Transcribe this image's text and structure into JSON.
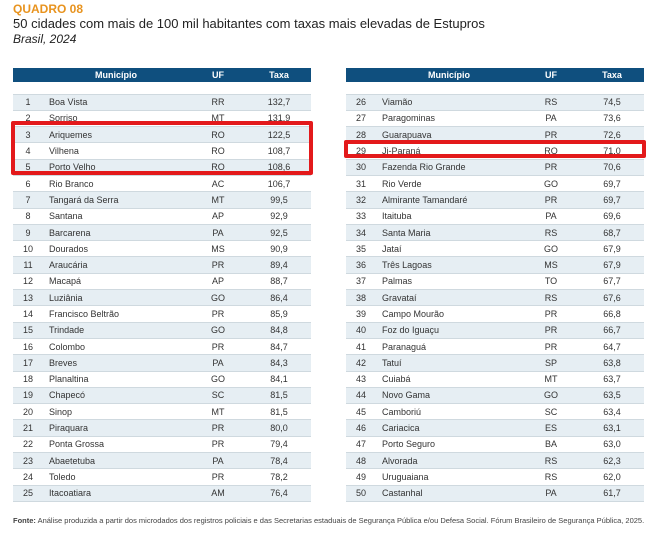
{
  "header": {
    "kicker": "QUADRO 08",
    "title": "50 cidades com mais de 100 mil habitantes com taxas mais elevadas de Estupros",
    "subtitle": "Brasil, 2024"
  },
  "columns": {
    "num": "",
    "municipio": "Município",
    "uf": "UF",
    "taxa": "Taxa"
  },
  "rows_left": [
    {
      "n": "1",
      "m": "Boa Vista",
      "uf": "RR",
      "t": "132,7"
    },
    {
      "n": "2",
      "m": "Sorriso",
      "uf": "MT",
      "t": "131,9"
    },
    {
      "n": "3",
      "m": "Ariquemes",
      "uf": "RO",
      "t": "122,5"
    },
    {
      "n": "4",
      "m": "Vilhena",
      "uf": "RO",
      "t": "108,7"
    },
    {
      "n": "5",
      "m": "Porto Velho",
      "uf": "RO",
      "t": "108,6"
    },
    {
      "n": "6",
      "m": "Rio Branco",
      "uf": "AC",
      "t": "106,7"
    },
    {
      "n": "7",
      "m": "Tangará da Serra",
      "uf": "MT",
      "t": "99,5"
    },
    {
      "n": "8",
      "m": "Santana",
      "uf": "AP",
      "t": "92,9"
    },
    {
      "n": "9",
      "m": "Barcarena",
      "uf": "PA",
      "t": "92,5"
    },
    {
      "n": "10",
      "m": "Dourados",
      "uf": "MS",
      "t": "90,9"
    },
    {
      "n": "11",
      "m": "Araucária",
      "uf": "PR",
      "t": "89,4"
    },
    {
      "n": "12",
      "m": "Macapá",
      "uf": "AP",
      "t": "88,7"
    },
    {
      "n": "13",
      "m": "Luziânia",
      "uf": "GO",
      "t": "86,4"
    },
    {
      "n": "14",
      "m": "Francisco Beltrão",
      "uf": "PR",
      "t": "85,9"
    },
    {
      "n": "15",
      "m": "Trindade",
      "uf": "GO",
      "t": "84,8"
    },
    {
      "n": "16",
      "m": "Colombo",
      "uf": "PR",
      "t": "84,7"
    },
    {
      "n": "17",
      "m": "Breves",
      "uf": "PA",
      "t": "84,3"
    },
    {
      "n": "18",
      "m": "Planaltina",
      "uf": "GO",
      "t": "84,1"
    },
    {
      "n": "19",
      "m": "Chapecó",
      "uf": "SC",
      "t": "81,5"
    },
    {
      "n": "20",
      "m": "Sinop",
      "uf": "MT",
      "t": "81,5"
    },
    {
      "n": "21",
      "m": "Piraquara",
      "uf": "PR",
      "t": "80,0"
    },
    {
      "n": "22",
      "m": "Ponta Grossa",
      "uf": "PR",
      "t": "79,4"
    },
    {
      "n": "23",
      "m": "Abaetetuba",
      "uf": "PA",
      "t": "78,4"
    },
    {
      "n": "24",
      "m": "Toledo",
      "uf": "PR",
      "t": "78,2"
    },
    {
      "n": "25",
      "m": "Itacoatiara",
      "uf": "AM",
      "t": "76,4"
    }
  ],
  "rows_right": [
    {
      "n": "26",
      "m": "Viamão",
      "uf": "RS",
      "t": "74,5"
    },
    {
      "n": "27",
      "m": "Paragominas",
      "uf": "PA",
      "t": "73,6"
    },
    {
      "n": "28",
      "m": "Guarapuava",
      "uf": "PR",
      "t": "72,6"
    },
    {
      "n": "29",
      "m": "Ji-Paraná",
      "uf": "RO",
      "t": "71,0"
    },
    {
      "n": "30",
      "m": "Fazenda Rio Grande",
      "uf": "PR",
      "t": "70,6"
    },
    {
      "n": "31",
      "m": "Rio Verde",
      "uf": "GO",
      "t": "69,7"
    },
    {
      "n": "32",
      "m": "Almirante Tamandaré",
      "uf": "PR",
      "t": "69,7"
    },
    {
      "n": "33",
      "m": "Itaituba",
      "uf": "PA",
      "t": "69,6"
    },
    {
      "n": "34",
      "m": "Santa Maria",
      "uf": "RS",
      "t": "68,7"
    },
    {
      "n": "35",
      "m": "Jataí",
      "uf": "GO",
      "t": "67,9"
    },
    {
      "n": "36",
      "m": "Três Lagoas",
      "uf": "MS",
      "t": "67,9"
    },
    {
      "n": "37",
      "m": "Palmas",
      "uf": "TO",
      "t": "67,7"
    },
    {
      "n": "38",
      "m": "Gravataí",
      "uf": "RS",
      "t": "67,6"
    },
    {
      "n": "39",
      "m": "Campo Mourão",
      "uf": "PR",
      "t": "66,8"
    },
    {
      "n": "40",
      "m": "Foz do Iguaçu",
      "uf": "PR",
      "t": "66,7"
    },
    {
      "n": "41",
      "m": "Paranaguá",
      "uf": "PR",
      "t": "64,7"
    },
    {
      "n": "42",
      "m": "Tatuí",
      "uf": "SP",
      "t": "63,8"
    },
    {
      "n": "43",
      "m": "Cuiabá",
      "uf": "MT",
      "t": "63,7"
    },
    {
      "n": "44",
      "m": "Novo Gama",
      "uf": "GO",
      "t": "63,5"
    },
    {
      "n": "45",
      "m": "Camboriú",
      "uf": "SC",
      "t": "63,4"
    },
    {
      "n": "46",
      "m": "Cariacica",
      "uf": "ES",
      "t": "63,1"
    },
    {
      "n": "47",
      "m": "Porto Seguro",
      "uf": "BA",
      "t": "63,0"
    },
    {
      "n": "48",
      "m": "Alvorada",
      "uf": "RS",
      "t": "62,3"
    },
    {
      "n": "49",
      "m": "Uruguaiana",
      "uf": "RS",
      "t": "62,0"
    },
    {
      "n": "50",
      "m": "Castanhal",
      "uf": "PA",
      "t": "61,7"
    }
  ],
  "footer": {
    "label": "Fonte:",
    "text": " Análise produzida a partir dos microdados dos registros policiais e das Secretarias estaduais de Segurança Pública e/ou Defesa Social. Fórum Brasileiro de Segurança Pública, 2025."
  },
  "highlight_color": "#e3191b",
  "header_color": "#0f4f7e",
  "accent_color": "#e8931e"
}
